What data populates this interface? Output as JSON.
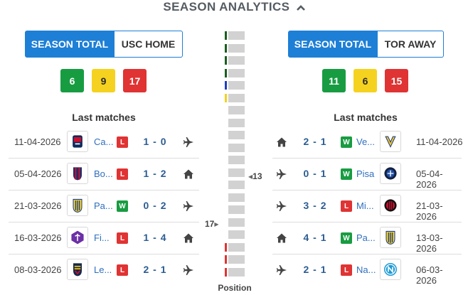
{
  "title": "SEASON ANALYTICS",
  "left": {
    "toggle": {
      "active": "SEASON TOTAL",
      "other": "USC HOME"
    },
    "stats": {
      "wins": "6",
      "draws": "9",
      "losses": "17"
    },
    "last_matches_title": "Last matches",
    "matches": [
      {
        "date": "11-04-2026",
        "team": "Ca...",
        "result": "L",
        "score": "1 - 0",
        "venue": "away",
        "crest": "cagliari-crest"
      },
      {
        "date": "05-04-2026",
        "team": "Bo...",
        "result": "L",
        "score": "1 - 2",
        "venue": "home",
        "crest": "bologna-crest"
      },
      {
        "date": "21-03-2026",
        "team": "Pa...",
        "result": "W",
        "score": "0 - 2",
        "venue": "away",
        "crest": "parma-crest"
      },
      {
        "date": "16-03-2026",
        "team": "Fi...",
        "result": "L",
        "score": "1 - 4",
        "venue": "home",
        "crest": "fiorentina-crest"
      },
      {
        "date": "08-03-2026",
        "team": "Le...",
        "result": "L",
        "score": "2 - 1",
        "venue": "away",
        "crest": "lecce-crest"
      }
    ]
  },
  "right": {
    "toggle": {
      "active": "SEASON TOTAL",
      "other": "TOR AWAY"
    },
    "stats": {
      "wins": "11",
      "draws": "6",
      "losses": "15"
    },
    "last_matches_title": "Last matches",
    "matches": [
      {
        "date": "11-04-2026",
        "team": "Ve...",
        "result": "W",
        "score": "2 - 1",
        "venue": "home",
        "crest": "verona-crest"
      },
      {
        "date": "05-04-2026",
        "team": "Pisa",
        "result": "W",
        "score": "0 - 1",
        "venue": "away",
        "crest": "pisa-crest"
      },
      {
        "date": "21-03-2026",
        "team": "Mi...",
        "result": "L",
        "score": "3 - 2",
        "venue": "away",
        "crest": "milan-crest"
      },
      {
        "date": "13-03-2026",
        "team": "Pa...",
        "result": "W",
        "score": "4 - 1",
        "venue": "home",
        "crest": "parma-crest"
      },
      {
        "date": "06-03-2026",
        "team": "Na...",
        "result": "L",
        "score": "2 - 1",
        "venue": "away",
        "crest": "napoli-crest"
      }
    ]
  },
  "position": {
    "caption": "Position",
    "left_team_position": "17",
    "right_team_position": "13",
    "total_positions": 20,
    "zone_colors": [
      "#1b5e20",
      "#1b5e20",
      "#1b5e20",
      "#1b5e20",
      "#1f3fbf",
      "#f5d21f",
      "",
      "",
      "",
      "",
      "",
      "",
      "",
      "",
      "",
      "",
      "",
      "#e03333",
      "#e03333",
      "#e03333"
    ]
  },
  "colors": {
    "accent": "#1e7fd6",
    "win": "#189c42",
    "draw": "#f5d21f",
    "loss": "#e03333",
    "link": "#2f6fbf"
  }
}
